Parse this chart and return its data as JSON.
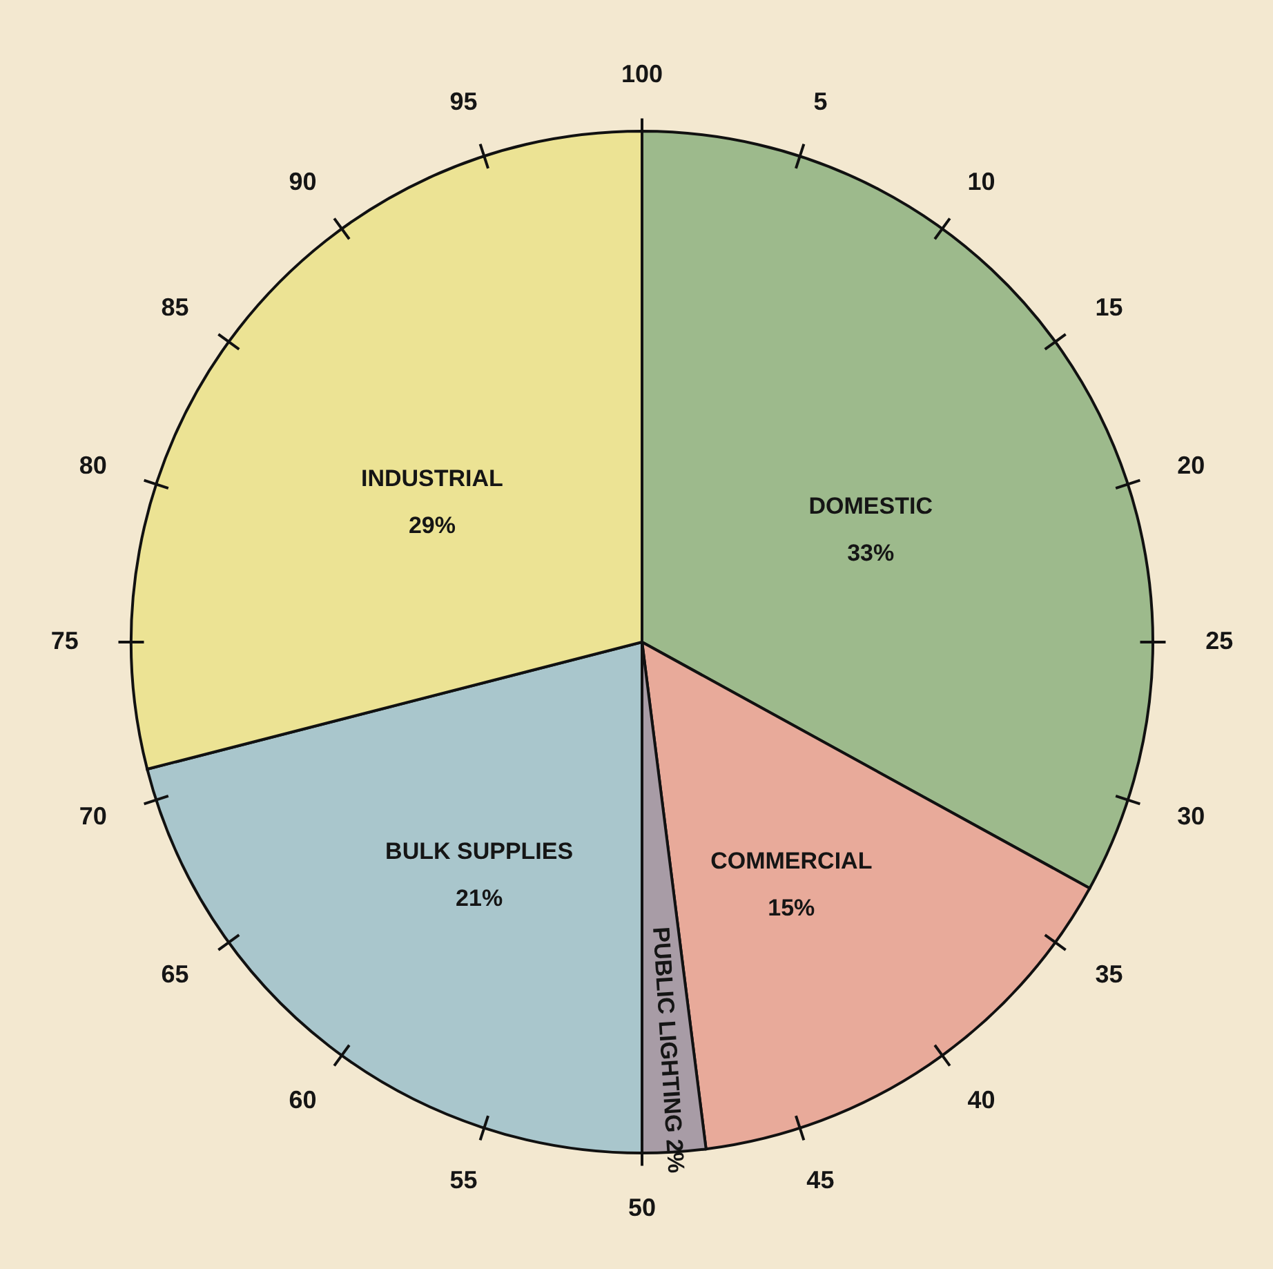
{
  "chart_data": {
    "type": "pie",
    "categories": [
      "DOMESTIC",
      "COMMERCIAL",
      "PUBLIC LIGHTING",
      "BULK  SUPPLIES",
      "INDUSTRIAL"
    ],
    "values": [
      33,
      15,
      2,
      21,
      29
    ],
    "colors": [
      "#9dba8c",
      "#e8aa9a",
      "#a89ca6",
      "#a9c6cc",
      "#ece394"
    ],
    "value_labels": [
      "33%",
      "15%",
      "2%",
      "21%",
      "29%"
    ],
    "annotations": [
      "5",
      "10",
      "15",
      "20",
      "25",
      "30",
      "35",
      "40",
      "45",
      "50",
      "55",
      "60",
      "65",
      "70",
      "75",
      "80",
      "85",
      "90",
      "95",
      "100"
    ]
  }
}
